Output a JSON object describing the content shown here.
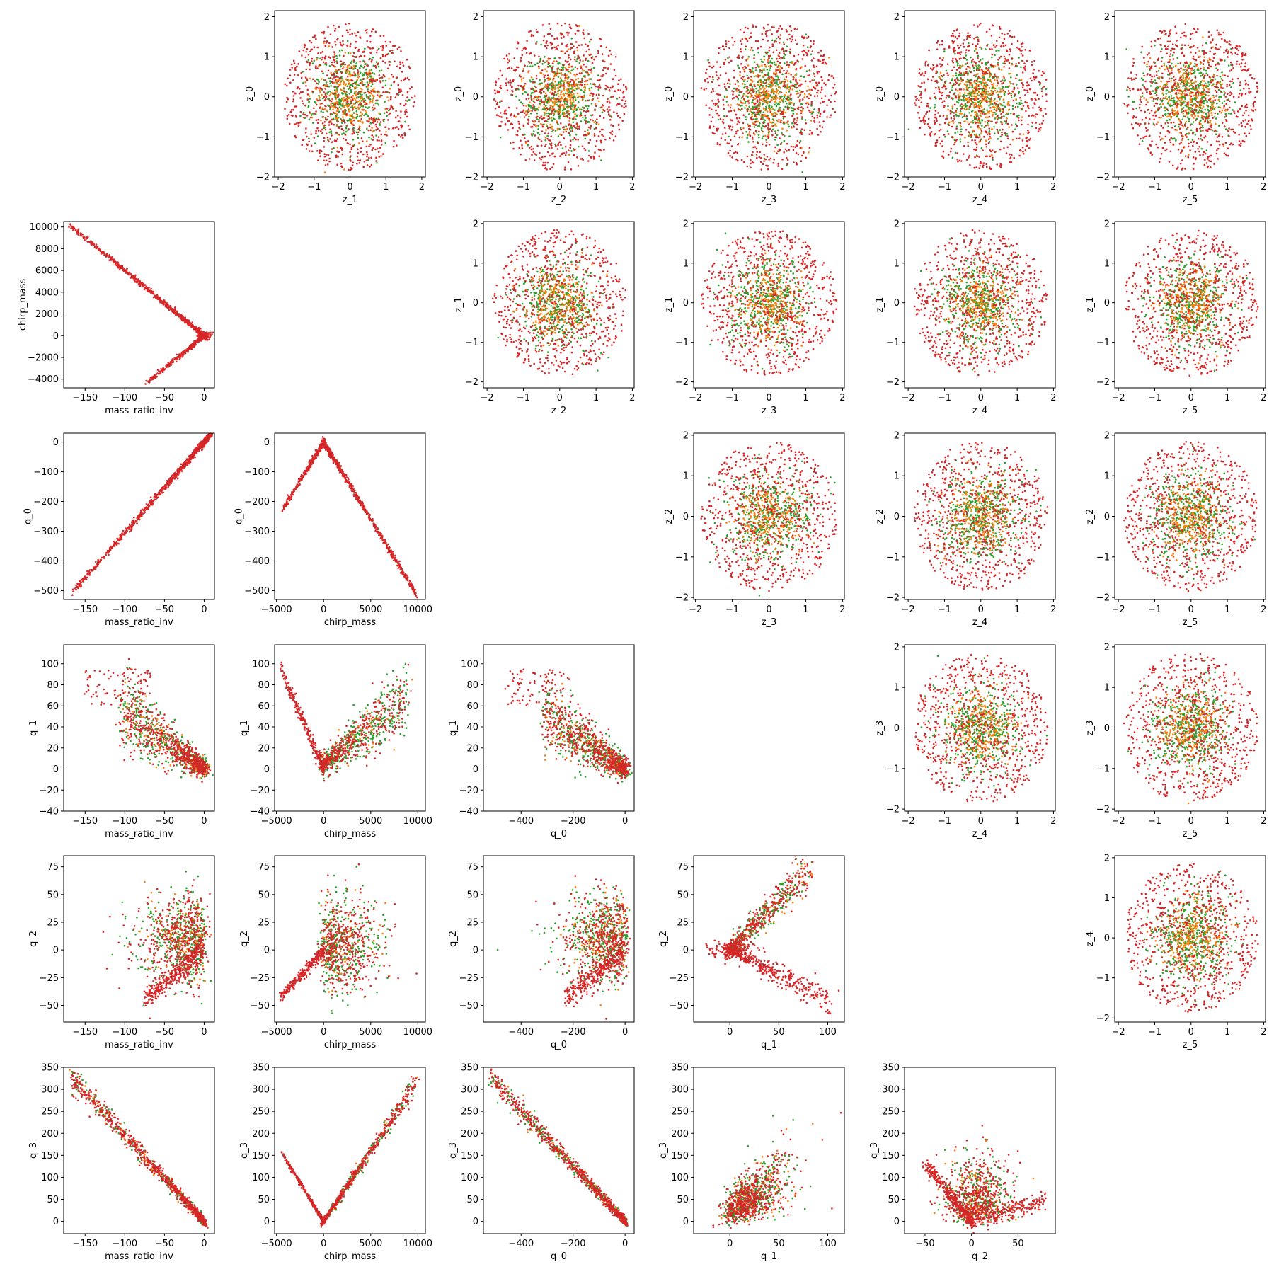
{
  "figure": {
    "type": "pairplot",
    "series_colors": [
      "#2ca02c",
      "#ff7f0e",
      "#d62728"
    ],
    "marker": "dot"
  },
  "chart_data": [
    {
      "type": "scatter",
      "xlabel": "z_1",
      "ylabel": "z_0",
      "xlim": [
        -2.1,
        2.1
      ],
      "ylim": [
        -2.0,
        2.15
      ],
      "xticks": [
        -2,
        -1,
        0,
        1,
        2
      ],
      "yticks": [
        -2,
        -1,
        0,
        1,
        2
      ],
      "pattern": "blob",
      "sd": [
        0.62,
        0.6
      ]
    },
    {
      "type": "scatter",
      "xlabel": "z_2",
      "ylabel": "z_0",
      "xlim": [
        -2.1,
        2.05
      ],
      "ylim": [
        -2.0,
        2.15
      ],
      "xticks": [
        -2,
        -1,
        0,
        1,
        2
      ],
      "yticks": [
        -2,
        -1,
        0,
        1,
        2
      ],
      "pattern": "blob",
      "sd": [
        0.62,
        0.6
      ]
    },
    {
      "type": "scatter",
      "xlabel": "z_3",
      "ylabel": "z_0",
      "xlim": [
        -2.05,
        2.05
      ],
      "ylim": [
        -2.0,
        2.15
      ],
      "xticks": [
        -2,
        -1,
        0,
        1,
        2
      ],
      "yticks": [
        -2,
        -1,
        0,
        1,
        2
      ],
      "pattern": "blob",
      "sd": [
        0.62,
        0.6
      ]
    },
    {
      "type": "scatter",
      "xlabel": "z_4",
      "ylabel": "z_0",
      "xlim": [
        -2.1,
        2.05
      ],
      "ylim": [
        -2.0,
        2.15
      ],
      "xticks": [
        -2,
        -1,
        0,
        1,
        2
      ],
      "yticks": [
        -2,
        -1,
        0,
        1,
        2
      ],
      "pattern": "blob",
      "sd": [
        0.62,
        0.6
      ]
    },
    {
      "type": "scatter",
      "xlabel": "z_5",
      "ylabel": "z_0",
      "xlim": [
        -2.1,
        2.05
      ],
      "ylim": [
        -2.0,
        2.15
      ],
      "xticks": [
        -2,
        -1,
        0,
        1,
        2
      ],
      "yticks": [
        -2,
        -1,
        0,
        1,
        2
      ],
      "pattern": "blob",
      "sd": [
        0.62,
        0.6
      ]
    },
    {
      "type": "scatter",
      "xlabel": "mass_ratio_inv",
      "ylabel": "chirp_mass",
      "xlim": [
        -177,
        13
      ],
      "ylim": [
        -4800,
        10500
      ],
      "xticks": [
        -150,
        -100,
        -50,
        0
      ],
      "yticks": [
        -4000,
        -2000,
        0,
        2000,
        4000,
        6000,
        8000,
        10000
      ],
      "pattern": "chevron",
      "sd": [
        0,
        0
      ]
    },
    {
      "type": "scatter",
      "xlabel": "z_2",
      "ylabel": "z_1",
      "xlim": [
        -2.1,
        2.05
      ],
      "ylim": [
        -2.15,
        2.05
      ],
      "xticks": [
        -2,
        -1,
        0,
        1,
        2
      ],
      "yticks": [
        -2,
        -1,
        0,
        1,
        2
      ],
      "pattern": "blob",
      "sd": [
        0.62,
        0.62
      ]
    },
    {
      "type": "scatter",
      "xlabel": "z_3",
      "ylabel": "z_1",
      "xlim": [
        -2.05,
        2.05
      ],
      "ylim": [
        -2.15,
        2.05
      ],
      "xticks": [
        -2,
        -1,
        0,
        1,
        2
      ],
      "yticks": [
        -2,
        -1,
        0,
        1,
        2
      ],
      "pattern": "blob",
      "sd": [
        0.62,
        0.62
      ]
    },
    {
      "type": "scatter",
      "xlabel": "z_4",
      "ylabel": "z_1",
      "xlim": [
        -2.1,
        2.05
      ],
      "ylim": [
        -2.15,
        2.05
      ],
      "xticks": [
        -2,
        -1,
        0,
        1,
        2
      ],
      "yticks": [
        -2,
        -1,
        0,
        1,
        2
      ],
      "pattern": "blob",
      "sd": [
        0.62,
        0.62
      ]
    },
    {
      "type": "scatter",
      "xlabel": "z_5",
      "ylabel": "z_1",
      "xlim": [
        -2.1,
        2.05
      ],
      "ylim": [
        -2.15,
        2.05
      ],
      "xticks": [
        -2,
        -1,
        0,
        1,
        2
      ],
      "yticks": [
        -2,
        -1,
        0,
        1,
        2
      ],
      "pattern": "blob",
      "sd": [
        0.62,
        0.62
      ]
    },
    {
      "type": "scatter",
      "xlabel": "mass_ratio_inv",
      "ylabel": "q_0",
      "xlim": [
        -177,
        13
      ],
      "ylim": [
        -530,
        30
      ],
      "xticks": [
        -150,
        -100,
        -50,
        0
      ],
      "yticks": [
        -500,
        -400,
        -300,
        -200,
        -100,
        0
      ],
      "pattern": "diagonal",
      "sd": [
        0,
        0
      ]
    },
    {
      "type": "scatter",
      "xlabel": "chirp_mass",
      "ylabel": "q_0",
      "xlim": [
        -5200,
        10800
      ],
      "ylim": [
        -530,
        30
      ],
      "xticks": [
        -5000,
        0,
        5000,
        10000
      ],
      "yticks": [
        -500,
        -400,
        -300,
        -200,
        -100,
        0
      ],
      "pattern": "lambda",
      "sd": [
        0,
        0
      ]
    },
    {
      "type": "scatter",
      "xlabel": "z_3",
      "ylabel": "z_2",
      "xlim": [
        -2.05,
        2.05
      ],
      "ylim": [
        -2.05,
        2.05
      ],
      "xticks": [
        -2,
        -1,
        0,
        1,
        2
      ],
      "yticks": [
        -2,
        -1,
        0,
        1,
        2
      ],
      "pattern": "blob",
      "sd": [
        0.62,
        0.62
      ]
    },
    {
      "type": "scatter",
      "xlabel": "z_4",
      "ylabel": "z_2",
      "xlim": [
        -2.1,
        2.05
      ],
      "ylim": [
        -2.05,
        2.05
      ],
      "xticks": [
        -2,
        -1,
        0,
        1,
        2
      ],
      "yticks": [
        -2,
        -1,
        0,
        1,
        2
      ],
      "pattern": "blob",
      "sd": [
        0.62,
        0.62
      ]
    },
    {
      "type": "scatter",
      "xlabel": "z_5",
      "ylabel": "z_2",
      "xlim": [
        -2.1,
        2.05
      ],
      "ylim": [
        -2.05,
        2.05
      ],
      "xticks": [
        -2,
        -1,
        0,
        1,
        2
      ],
      "yticks": [
        -2,
        -1,
        0,
        1,
        2
      ],
      "pattern": "blob",
      "sd": [
        0.62,
        0.62
      ]
    },
    {
      "type": "scatter",
      "xlabel": "mass_ratio_inv",
      "ylabel": "q_1",
      "xlim": [
        -177,
        13
      ],
      "ylim": [
        -40,
        118
      ],
      "xticks": [
        -150,
        -100,
        -50,
        0
      ],
      "yticks": [
        -40,
        -20,
        0,
        20,
        40,
        60,
        80,
        100
      ],
      "pattern": "fan_left",
      "sd": [
        0,
        0
      ]
    },
    {
      "type": "scatter",
      "xlabel": "chirp_mass",
      "ylabel": "q_1",
      "xlim": [
        -5200,
        10800
      ],
      "ylim": [
        -40,
        118
      ],
      "xticks": [
        -5000,
        0,
        5000,
        10000
      ],
      "yticks": [
        -40,
        -20,
        0,
        20,
        40,
        60,
        80,
        100
      ],
      "pattern": "vee",
      "sd": [
        0,
        0
      ]
    },
    {
      "type": "scatter",
      "xlabel": "q_0",
      "ylabel": "q_1",
      "xlim": [
        -545,
        35
      ],
      "ylim": [
        -40,
        118
      ],
      "xticks": [
        -400,
        -200,
        0
      ],
      "yticks": [
        -40,
        -20,
        0,
        20,
        40,
        60,
        80,
        100
      ],
      "pattern": "fan_left",
      "sd": [
        0,
        0
      ]
    },
    {
      "type": "scatter",
      "xlabel": "z_4",
      "ylabel": "z_3",
      "xlim": [
        -2.1,
        2.05
      ],
      "ylim": [
        -2.05,
        2.05
      ],
      "xticks": [
        -2,
        -1,
        0,
        1,
        2
      ],
      "yticks": [
        -2,
        -1,
        0,
        1,
        2
      ],
      "pattern": "blob",
      "sd": [
        0.62,
        0.62
      ]
    },
    {
      "type": "scatter",
      "xlabel": "z_5",
      "ylabel": "z_3",
      "xlim": [
        -2.1,
        2.05
      ],
      "ylim": [
        -2.05,
        2.05
      ],
      "xticks": [
        -2,
        -1,
        0,
        1,
        2
      ],
      "yticks": [
        -2,
        -1,
        0,
        1,
        2
      ],
      "pattern": "blob",
      "sd": [
        0.62,
        0.62
      ]
    },
    {
      "type": "scatter",
      "xlabel": "mass_ratio_inv",
      "ylabel": "q_2",
      "xlim": [
        -177,
        13
      ],
      "ylim": [
        -65,
        85
      ],
      "xticks": [
        -150,
        -100,
        -50,
        0
      ],
      "yticks": [
        -50,
        -25,
        0,
        25,
        50,
        75
      ],
      "pattern": "cloud_wedge",
      "sd": [
        0,
        0
      ]
    },
    {
      "type": "scatter",
      "xlabel": "chirp_mass",
      "ylabel": "q_2",
      "xlim": [
        -5200,
        10800
      ],
      "ylim": [
        -65,
        85
      ],
      "xticks": [
        -5000,
        0,
        5000,
        10000
      ],
      "yticks": [
        -50,
        -25,
        0,
        25,
        50,
        75
      ],
      "pattern": "line_cloud",
      "sd": [
        0,
        0
      ]
    },
    {
      "type": "scatter",
      "xlabel": "q_0",
      "ylabel": "q_2",
      "xlim": [
        -545,
        35
      ],
      "ylim": [
        -65,
        85
      ],
      "xticks": [
        -400,
        -200,
        0
      ],
      "yticks": [
        -50,
        -25,
        0,
        25,
        50,
        75
      ],
      "pattern": "cloud_wedge",
      "sd": [
        0,
        0
      ]
    },
    {
      "type": "scatter",
      "xlabel": "q_1",
      "ylabel": "q_2",
      "xlim": [
        -37,
        117
      ],
      "ylim": [
        -65,
        85
      ],
      "xticks": [
        0,
        50,
        100
      ],
      "yticks": [
        -50,
        -25,
        0,
        25,
        50,
        75
      ],
      "pattern": "arrow",
      "sd": [
        0,
        0
      ]
    },
    {
      "type": "scatter",
      "xlabel": "z_5",
      "ylabel": "z_4",
      "xlim": [
        -2.1,
        2.05
      ],
      "ylim": [
        -2.1,
        2.05
      ],
      "xticks": [
        -2,
        -1,
        0,
        1,
        2
      ],
      "yticks": [
        -2,
        -1,
        0,
        1,
        2
      ],
      "pattern": "blob",
      "sd": [
        0.62,
        0.62
      ]
    },
    {
      "type": "scatter",
      "xlabel": "mass_ratio_inv",
      "ylabel": "q_3",
      "xlim": [
        -177,
        13
      ],
      "ylim": [
        -28,
        350
      ],
      "xticks": [
        -150,
        -100,
        -50,
        0
      ],
      "yticks": [
        0,
        50,
        100,
        150,
        200,
        250,
        300,
        350
      ],
      "pattern": "decreasing",
      "sd": [
        0,
        0
      ]
    },
    {
      "type": "scatter",
      "xlabel": "chirp_mass",
      "ylabel": "q_3",
      "xlim": [
        -5200,
        10800
      ],
      "ylim": [
        -28,
        350
      ],
      "xticks": [
        -5000,
        0,
        5000,
        10000
      ],
      "yticks": [
        0,
        50,
        100,
        150,
        200,
        250,
        300,
        350
      ],
      "pattern": "vee_q3",
      "sd": [
        0,
        0
      ]
    },
    {
      "type": "scatter",
      "xlabel": "q_0",
      "ylabel": "q_3",
      "xlim": [
        -545,
        35
      ],
      "ylim": [
        -28,
        350
      ],
      "xticks": [
        -400,
        -200,
        0
      ],
      "yticks": [
        0,
        50,
        100,
        150,
        200,
        250,
        300,
        350
      ],
      "pattern": "decreasing_q0",
      "sd": [
        0,
        0
      ]
    },
    {
      "type": "scatter",
      "xlabel": "q_1",
      "ylabel": "q_3",
      "xlim": [
        -37,
        117
      ],
      "ylim": [
        -28,
        350
      ],
      "xticks": [
        0,
        50,
        100
      ],
      "yticks": [
        0,
        50,
        100,
        150,
        200,
        250,
        300,
        350
      ],
      "pattern": "fan_up",
      "sd": [
        0,
        0
      ]
    },
    {
      "type": "scatter",
      "xlabel": "q_2",
      "ylabel": "q_3",
      "xlim": [
        -72,
        90
      ],
      "ylim": [
        -28,
        350
      ],
      "xticks": [
        -50,
        0,
        50
      ],
      "yticks": [
        0,
        50,
        100,
        150,
        200,
        250,
        300,
        350
      ],
      "pattern": "q2q3",
      "sd": [
        0,
        0
      ]
    }
  ]
}
